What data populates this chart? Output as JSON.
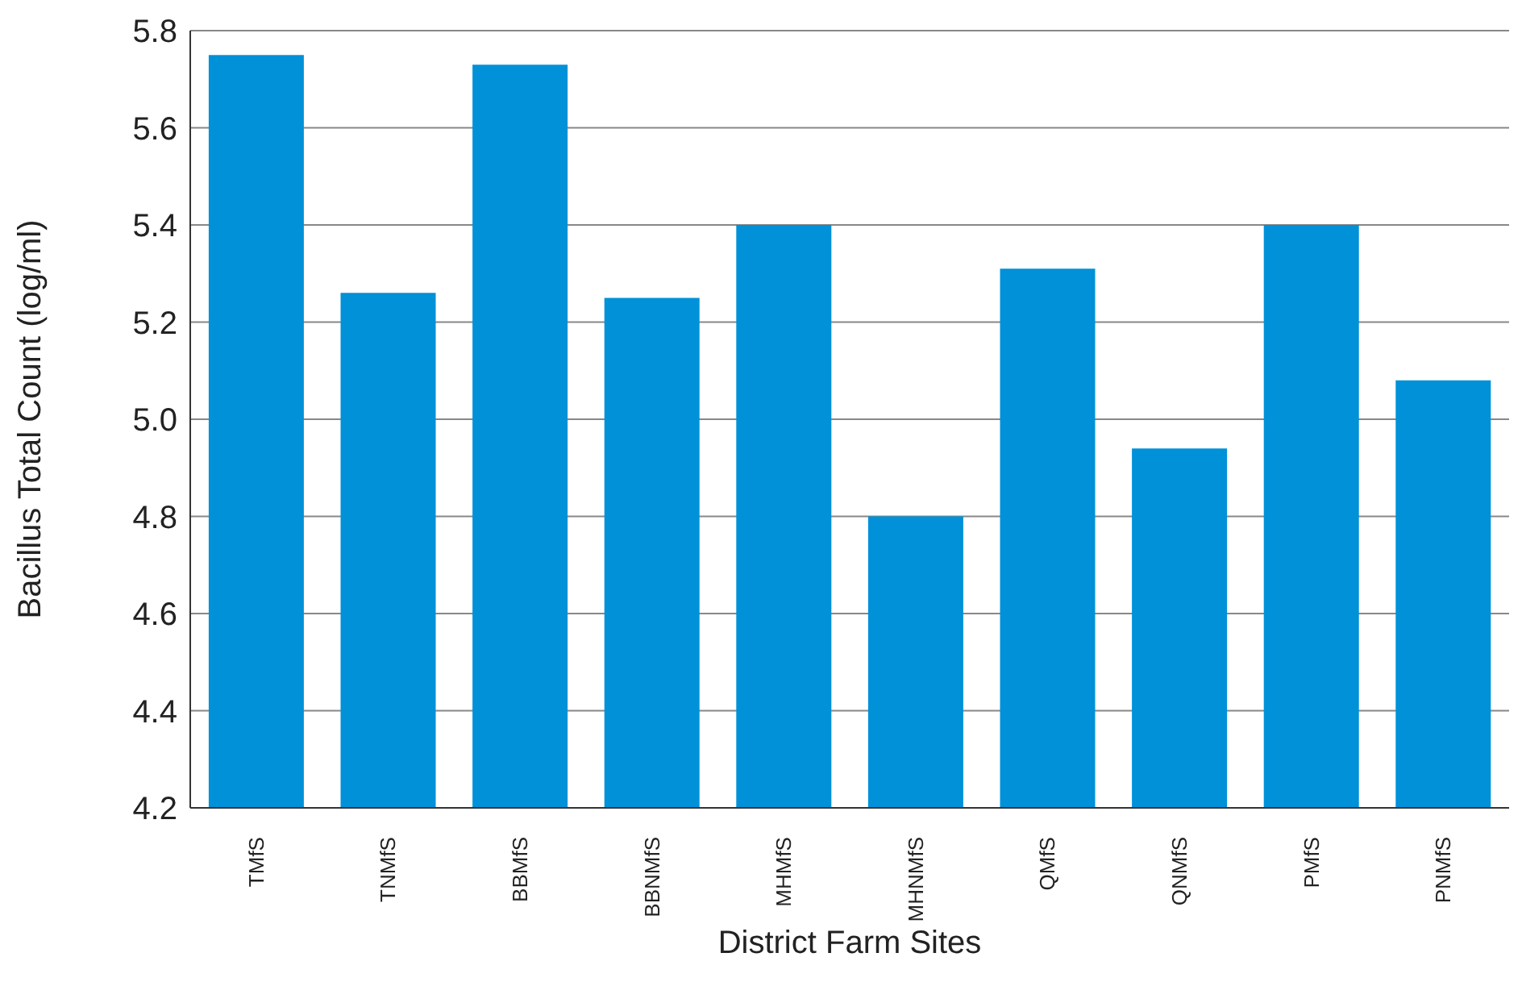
{
  "chart_data": {
    "type": "bar",
    "xlabel": "District Farm Sites",
    "ylabel": "Bacillus Total Count (log/ml)",
    "categories": [
      "TMfS",
      "TNMfS",
      "BBMfS",
      "BBNMfS",
      "MHMfS",
      "MHNMfS",
      "QMfS",
      "QNMfS",
      "PMfS",
      "PNMfS"
    ],
    "values": [
      5.75,
      5.26,
      5.73,
      5.25,
      5.4,
      4.8,
      5.31,
      4.94,
      5.4,
      5.08
    ],
    "color": "#0091d8",
    "ylim": [
      4.2,
      5.8
    ],
    "yticks": [
      4.2,
      4.4,
      4.6,
      4.8,
      {
        "value": 5,
        "label": "5.0"
      },
      5.2,
      5.4,
      5.6,
      5.8
    ],
    "grid": "y"
  }
}
